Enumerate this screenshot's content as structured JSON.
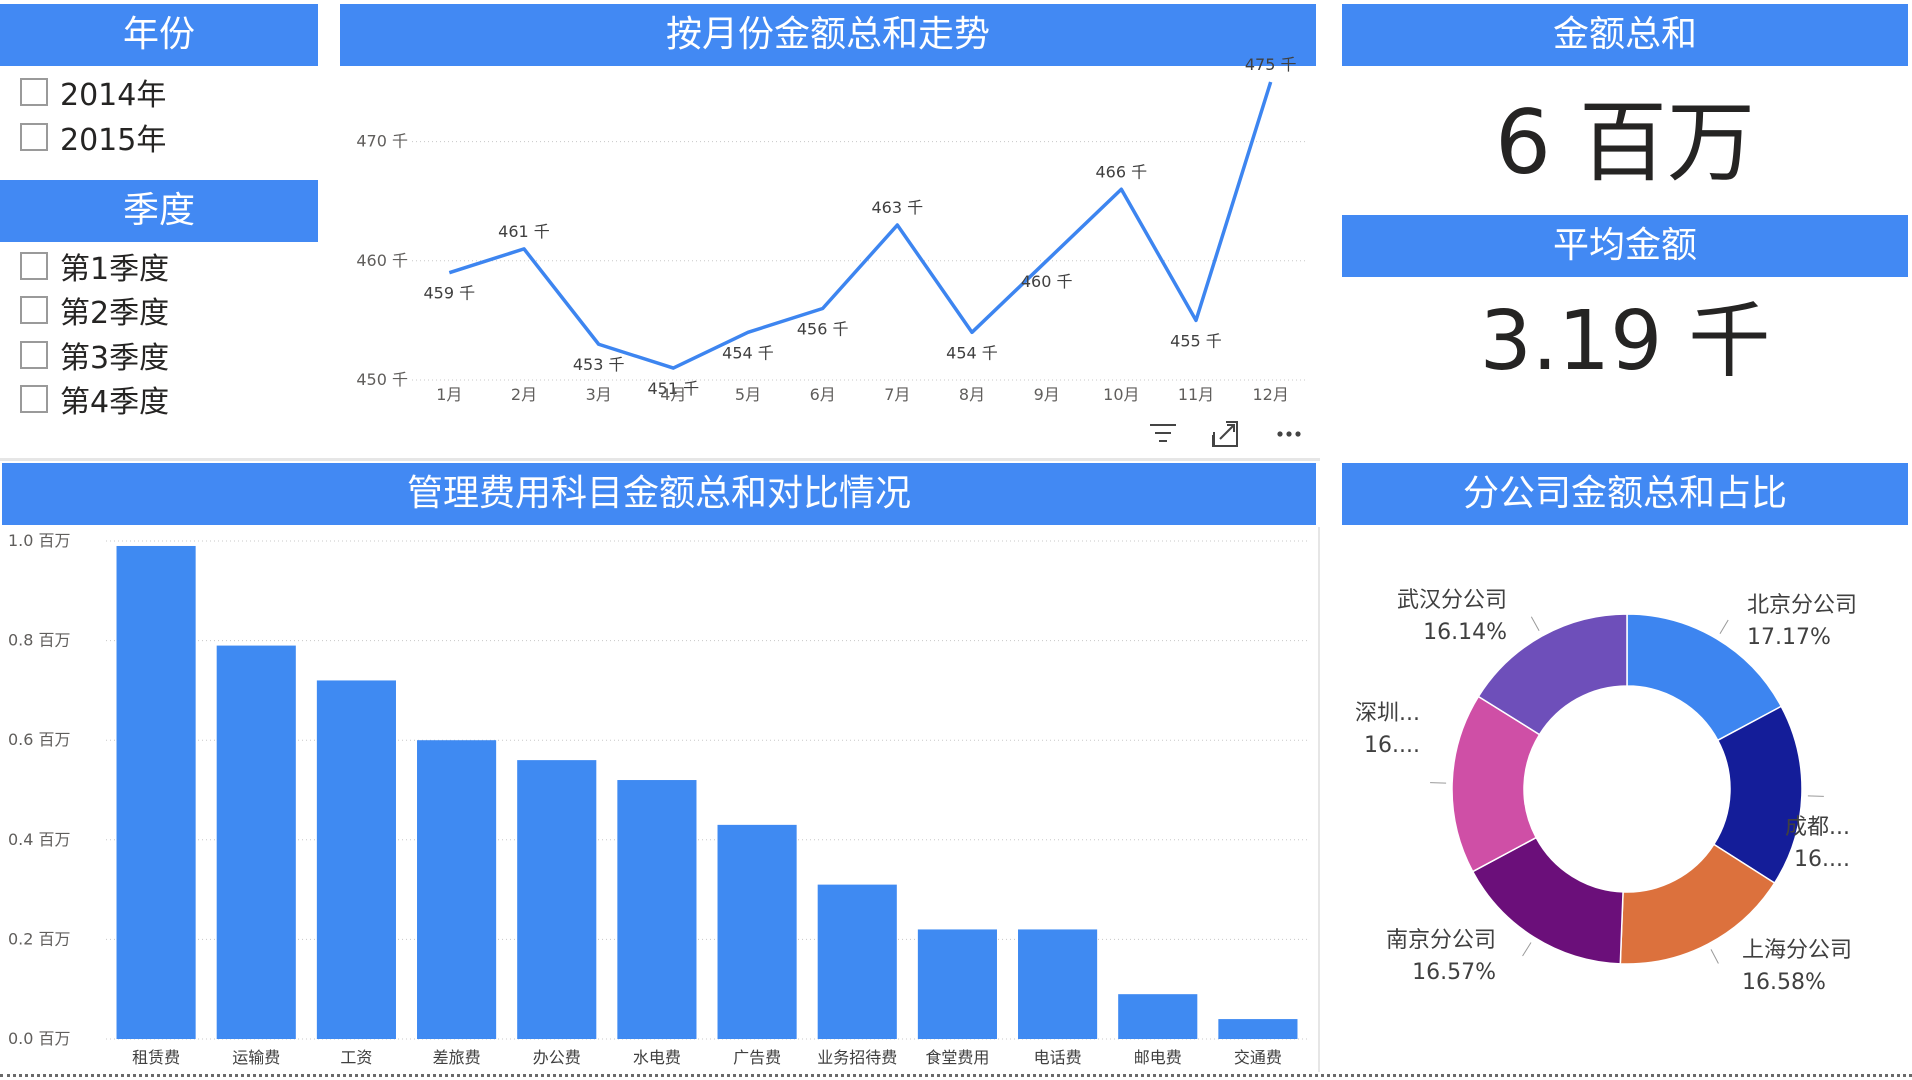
{
  "colors": {
    "header": "#4289f3",
    "line": "#3d85f0",
    "bar": "#3f8af2",
    "donut": [
      "#3d85f0",
      "#141d99",
      "#dc713d",
      "#6b0f7a",
      "#cf4fa6",
      "#6e4fba"
    ]
  },
  "year_slicer": {
    "title": "年份",
    "options": [
      "2014年",
      "2015年"
    ]
  },
  "quarter_slicer": {
    "title": "季度",
    "options": [
      "第1季度",
      "第2季度",
      "第3季度",
      "第4季度"
    ]
  },
  "line_card": {
    "title": "按月份金额总和走势",
    "icons": [
      "filter-icon",
      "focus-mode-icon",
      "more-options-icon"
    ]
  },
  "kpi_total": {
    "title": "金额总和",
    "value": "6 百万"
  },
  "kpi_avg": {
    "title": "平均金额",
    "value": "3.19 千"
  },
  "bar_card": {
    "title": "管理费用科目金额总和对比情况"
  },
  "donut_card": {
    "title": "分公司金额总和占比"
  },
  "chart_data": [
    {
      "type": "line",
      "title": "按月份金额总和走势",
      "categories": [
        "1月",
        "2月",
        "3月",
        "4月",
        "5月",
        "6月",
        "7月",
        "8月",
        "9月",
        "10月",
        "11月",
        "12月"
      ],
      "values": [
        459,
        461,
        453,
        451,
        454,
        456,
        463,
        454,
        460,
        466,
        455,
        475
      ],
      "data_labels": [
        "459 千",
        "461 千",
        "453 千",
        "451 千",
        "454 千",
        "456 千",
        "463 千",
        "454 千",
        "460 千",
        "466 千",
        "455 千",
        "475 千"
      ],
      "yticks": [
        "450 千",
        "460 千",
        "470 千"
      ],
      "ytick_values": [
        450,
        460,
        470
      ],
      "ylim": [
        450,
        475
      ],
      "grid": true
    },
    {
      "type": "bar",
      "title": "管理费用科目金额总和对比情况",
      "categories": [
        "租赁费",
        "运输费",
        "工资",
        "差旅费",
        "办公费",
        "水电费",
        "广告费",
        "业务招待费",
        "食堂费用",
        "电话费",
        "邮电费",
        "交通费"
      ],
      "values": [
        0.99,
        0.79,
        0.72,
        0.6,
        0.56,
        0.52,
        0.43,
        0.31,
        0.22,
        0.22,
        0.09,
        0.04
      ],
      "yticks": [
        "0.0 百万",
        "0.2 百万",
        "0.4 百万",
        "0.6 百万",
        "0.8 百万",
        "1.0 百万"
      ],
      "ytick_values": [
        0,
        0.2,
        0.4,
        0.6,
        0.8,
        1.0
      ],
      "ylim": [
        0,
        1.0
      ],
      "grid": true
    },
    {
      "type": "pie",
      "title": "分公司金额总和占比",
      "labels": [
        "北京分公司",
        "成都...",
        "上海分公司",
        "南京分公司",
        "深圳...",
        "武汉分公司"
      ],
      "values": [
        17.17,
        16.86,
        16.58,
        16.57,
        16.68,
        16.14
      ],
      "percent_labels": [
        "17.17%",
        "16....",
        "16.58%",
        "16.57%",
        "16....",
        "16.14%"
      ]
    }
  ]
}
